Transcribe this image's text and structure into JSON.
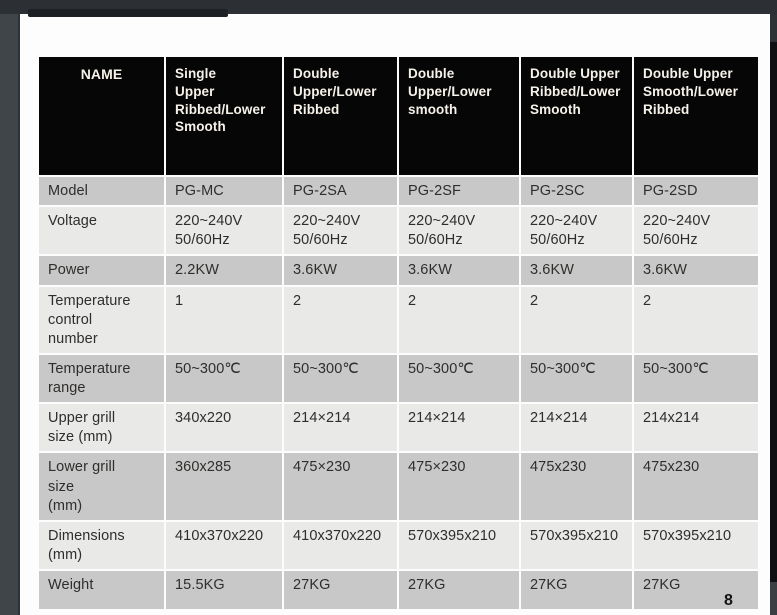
{
  "page": {
    "number": "8"
  },
  "table": {
    "headers": [
      "NAME",
      "Single\nUpper\nRibbed/Lower\nSmooth",
      "Double\nUpper/Lower\nRibbed",
      "Double\nUpper/Lower\nsmooth",
      "Double Upper\nRibbed/Lower\nSmooth",
      "Double Upper\nSmooth/Lower\nRibbed"
    ],
    "rows": [
      {
        "label": "Model",
        "values": [
          "PG-MC",
          "PG-2SA",
          "PG-2SF",
          "PG-2SC",
          "PG-2SD"
        ]
      },
      {
        "label": "Voltage",
        "values": [
          "220~240V\n50/60Hz",
          "220~240V\n50/60Hz",
          "220~240V\n50/60Hz",
          "220~240V\n50/60Hz",
          "220~240V\n50/60Hz"
        ]
      },
      {
        "label": "Power",
        "values": [
          "2.2KW",
          "3.6KW",
          "3.6KW",
          "3.6KW",
          "3.6KW"
        ]
      },
      {
        "label": "Temperature\ncontrol\nnumber",
        "values": [
          "1",
          "2",
          "2",
          "2",
          "2"
        ]
      },
      {
        "label": "Temperature\nrange",
        "values": [
          "50~300℃",
          "50~300℃",
          "50~300℃",
          "50~300℃",
          "50~300℃"
        ]
      },
      {
        "label": "Upper grill\nsize (mm)",
        "values": [
          "340x220",
          "214×214",
          "214×214",
          "214×214",
          "214x214"
        ]
      },
      {
        "label": "Lower grill\nsize\n(mm)",
        "values": [
          "360x285",
          "475×230",
          "475×230",
          "475x230",
          "475x230"
        ]
      },
      {
        "label": "Dimensions\n(mm)",
        "values": [
          "410x370x220",
          "410x370x220",
          "570x395x210",
          "570x395x210",
          "570x395x210"
        ]
      },
      {
        "label": "Weight",
        "values": [
          "15.5KG",
          "27KG",
          "27KG",
          "27KG",
          "27KG"
        ]
      }
    ]
  },
  "colors": {
    "header_bg": "#060606",
    "row_shade_dark": "#c8c8c8",
    "row_shade_light": "#e9e9e7",
    "viewer_chrome": "#2c3035",
    "page_bg": "#fdfdfd"
  }
}
